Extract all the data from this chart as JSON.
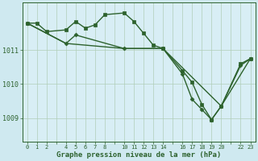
{
  "background_color": "#cfe9f0",
  "plot_bg_color": "#d8eef5",
  "line_color": "#2d622d",
  "grid_color": "#b0cdb8",
  "xlabel": "Graphe pression niveau de la mer (hPa)",
  "yticks": [
    1009,
    1010,
    1011
  ],
  "xlim": [
    -0.5,
    23.5
  ],
  "ylim": [
    1008.3,
    1012.4
  ],
  "figsize": [
    3.2,
    2.0
  ],
  "dpi": 100,
  "series": [
    {
      "x": [
        0,
        1,
        2,
        4,
        5,
        6,
        7,
        8,
        10,
        11,
        12,
        13,
        14,
        16,
        17,
        18,
        19,
        20,
        22,
        23
      ],
      "y": [
        1011.8,
        1011.8,
        1011.55,
        1011.6,
        1011.85,
        1011.65,
        1011.75,
        1012.05,
        1012.1,
        1011.85,
        1011.5,
        1011.15,
        1011.05,
        1010.4,
        1010.05,
        1009.4,
        1008.95,
        1009.35,
        1010.6,
        1010.75
      ],
      "marker": "s",
      "markersize": 2.5,
      "linewidth": 1.0
    },
    {
      "x": [
        0,
        4,
        5,
        10,
        14,
        16,
        17,
        18,
        19,
        20,
        22,
        23
      ],
      "y": [
        1011.8,
        1011.2,
        1011.45,
        1011.05,
        1011.05,
        1010.3,
        1009.55,
        1009.25,
        1008.95,
        1009.35,
        1010.55,
        1010.75
      ],
      "marker": "D",
      "markersize": 2.5,
      "linewidth": 1.0
    },
    {
      "x": [
        0,
        4,
        10,
        14,
        20,
        23
      ],
      "y": [
        1011.8,
        1011.2,
        1011.05,
        1011.05,
        1009.35,
        1010.75
      ],
      "marker": "o",
      "markersize": 0,
      "linewidth": 1.0
    }
  ]
}
